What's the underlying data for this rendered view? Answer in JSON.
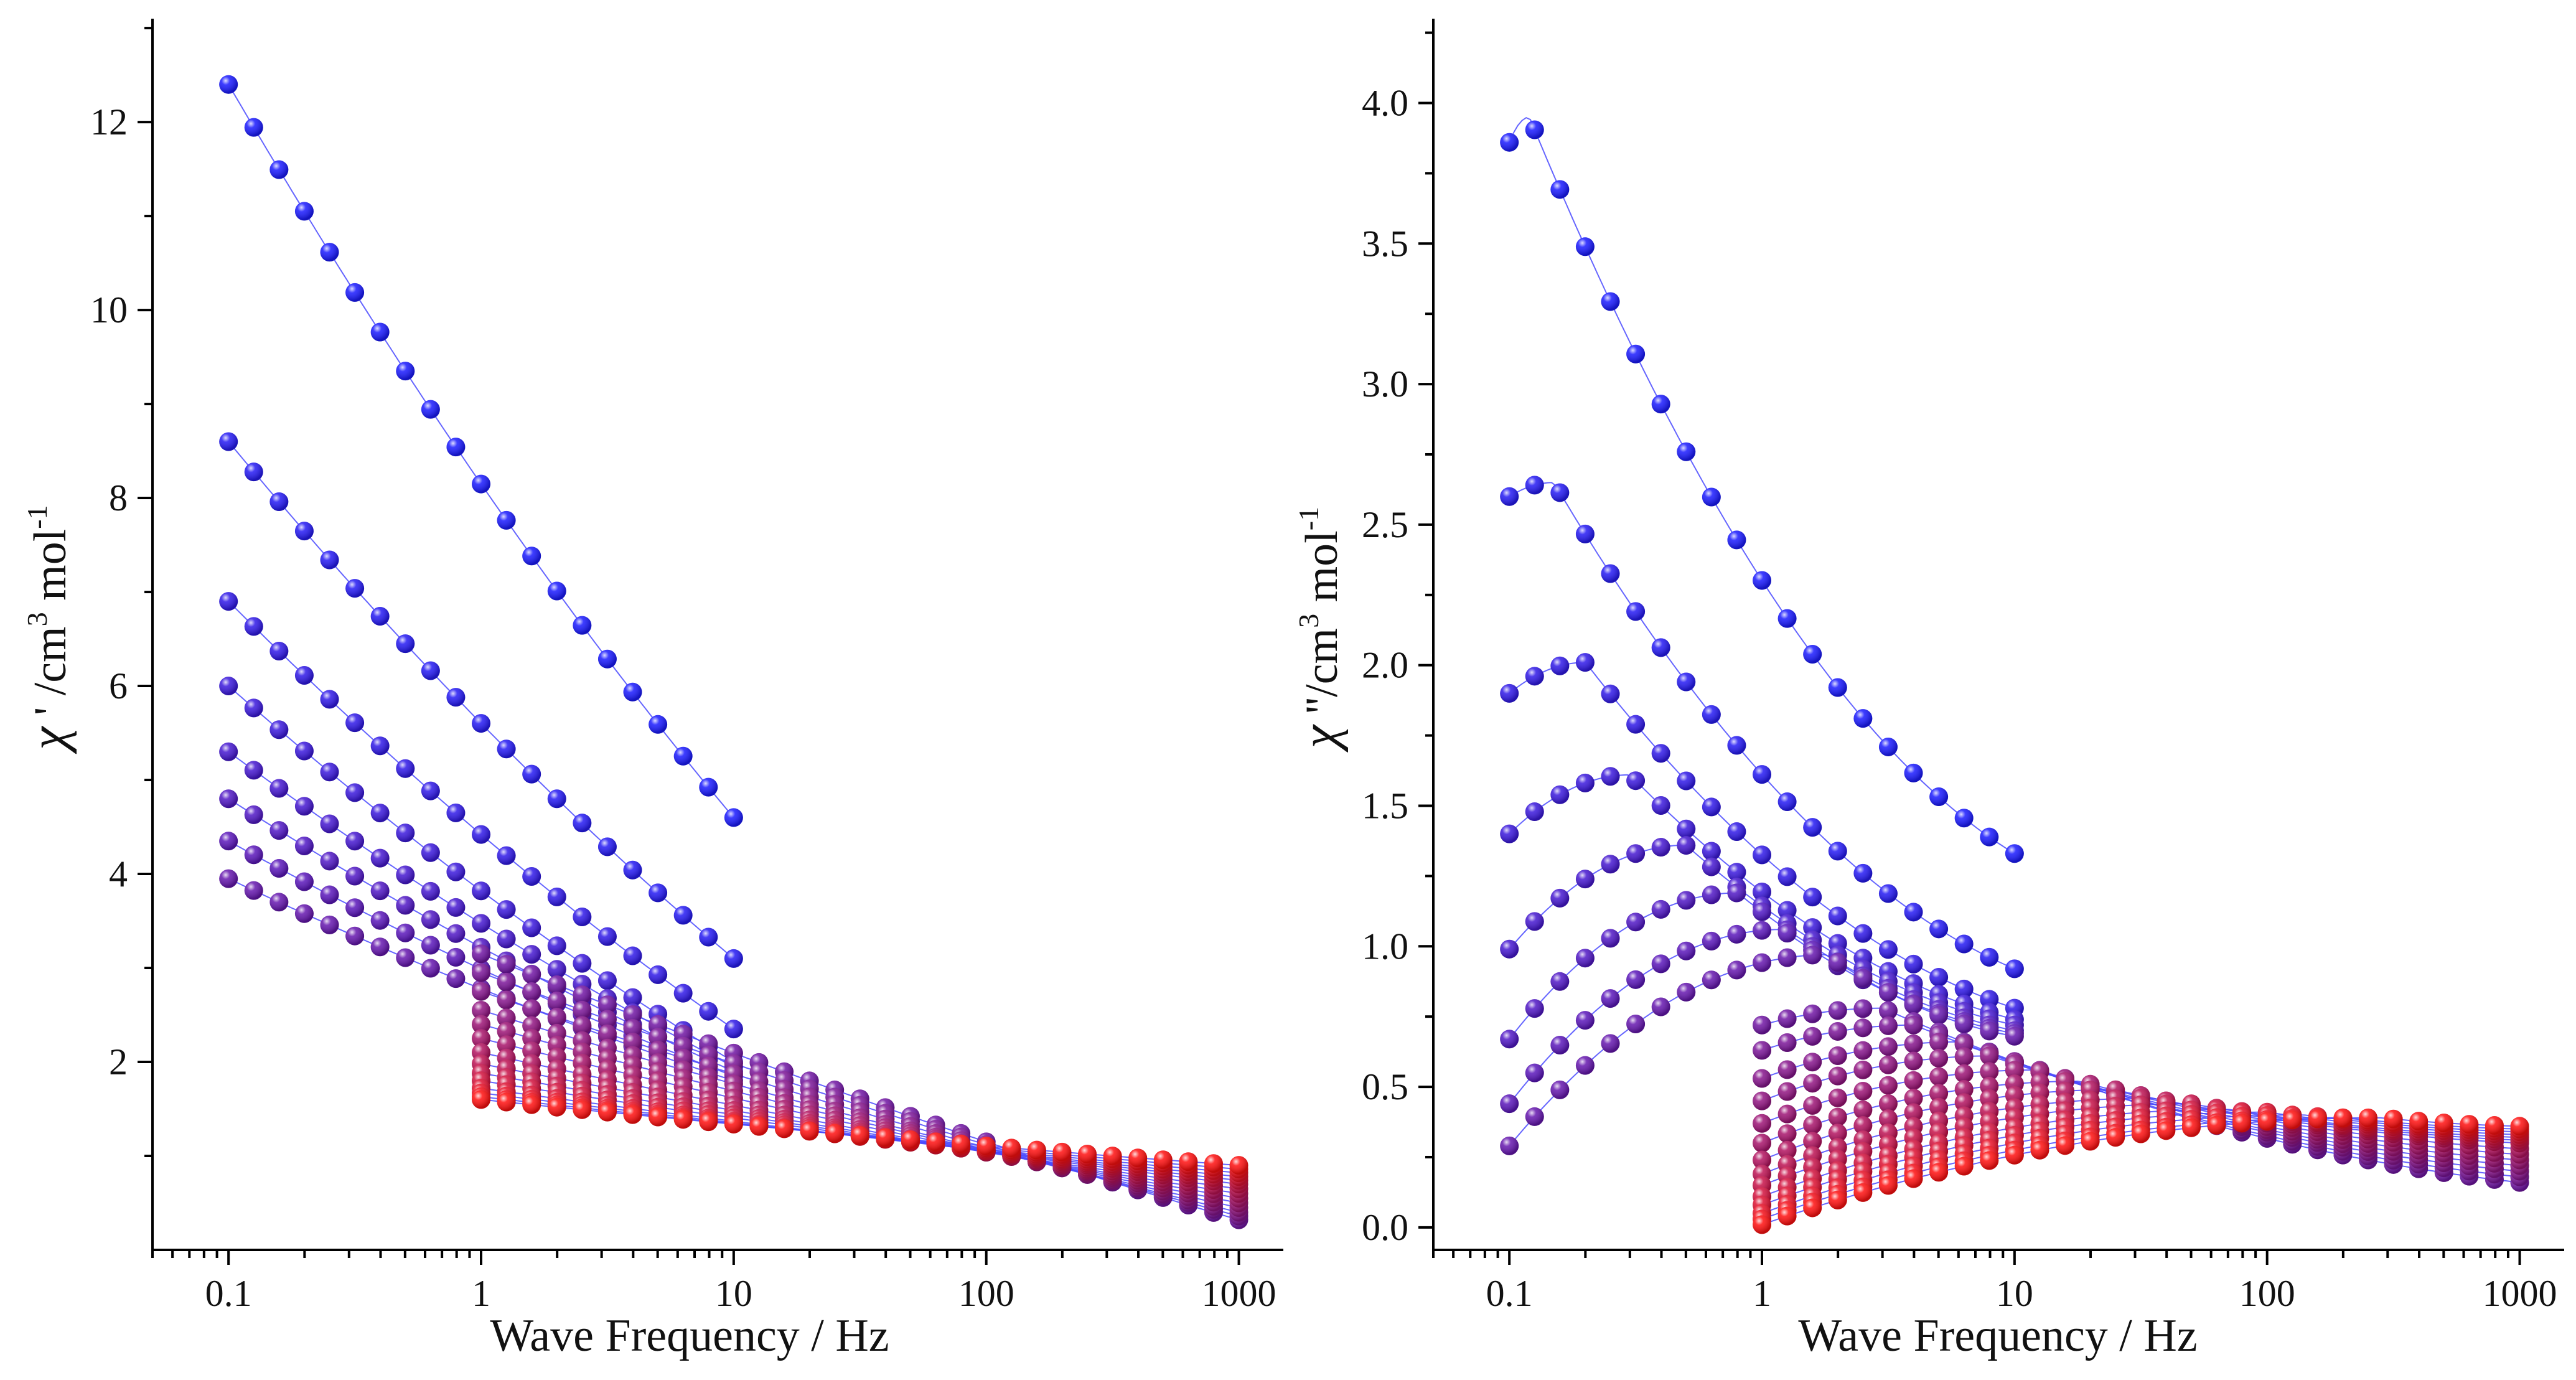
{
  "chart_data": [
    {
      "type": "scatter",
      "title": "",
      "xlabel": "Wave Frequency / Hz",
      "ylabel": "χ ' /cm³ mol⁻¹",
      "ylabel_parts": {
        "symbol": "χ",
        "prime": " '",
        "unit_a": " /cm",
        "sup_a": "3",
        "unit_b": " mol",
        "sup_b": "-1"
      },
      "x_scale": "log",
      "xlim": [
        0.05,
        1500
      ],
      "ylim": [
        0,
        13.1
      ],
      "x_ticks": [
        0.1,
        1,
        10,
        100,
        1000
      ],
      "x_tick_labels": [
        "0.1",
        "1",
        "10",
        "100",
        "1000"
      ],
      "y_ticks": [
        2,
        4,
        6,
        8,
        10,
        12
      ],
      "y_tick_labels": [
        "2",
        "4",
        "6",
        "8",
        "10",
        "12"
      ],
      "grid": false,
      "legend": "none",
      "marker": "sphere",
      "fit_lines": true,
      "color_gradient": {
        "first_series": "#1a1aff",
        "last_series": "#ff1010"
      },
      "fit_color": "#4a4aff",
      "series_groups": [
        {
          "x_start": 0.1,
          "x_end": 10,
          "points_per_decade": 10,
          "series": [
            {
              "y_low": 12.4,
              "y_high": 4.6
            },
            {
              "y_low": 8.6,
              "y_high": 3.1
            },
            {
              "y_low": 6.9,
              "y_high": 2.35
            },
            {
              "y_low": 6.0,
              "y_high": 2.0
            },
            {
              "y_low": 5.3,
              "y_high": 1.95
            },
            {
              "y_low": 4.8,
              "y_high": 1.9
            },
            {
              "y_low": 4.35,
              "y_high": 1.85
            },
            {
              "y_low": 3.95,
              "y_high": 1.8
            }
          ]
        },
        {
          "x_start": 1,
          "x_end": 1000,
          "points_per_decade": 10,
          "series": [
            {
              "y_low": 3.15,
              "y_high": 0.32
            },
            {
              "y_low": 2.95,
              "y_high": 0.36
            },
            {
              "y_low": 2.75,
              "y_high": 0.4
            },
            {
              "y_low": 2.55,
              "y_high": 0.45
            },
            {
              "y_low": 2.4,
              "y_high": 0.5
            },
            {
              "y_low": 2.25,
              "y_high": 0.55
            },
            {
              "y_low": 2.1,
              "y_high": 0.6
            },
            {
              "y_low": 1.98,
              "y_high": 0.65
            },
            {
              "y_low": 1.88,
              "y_high": 0.7
            },
            {
              "y_low": 1.8,
              "y_high": 0.74
            },
            {
              "y_low": 1.72,
              "y_high": 0.78
            },
            {
              "y_low": 1.67,
              "y_high": 0.82
            },
            {
              "y_low": 1.63,
              "y_high": 0.86
            },
            {
              "y_low": 1.6,
              "y_high": 0.9
            }
          ]
        }
      ]
    },
    {
      "type": "scatter",
      "title": "",
      "xlabel": "Wave Frequency / Hz",
      "ylabel": "χ ''/cm³ mol⁻¹",
      "ylabel_parts": {
        "symbol": "χ",
        "prime": " ''",
        "unit_a": "/cm",
        "sup_a": "3",
        "unit_b": " mol",
        "sup_b": "-1"
      },
      "x_scale": "log",
      "xlim": [
        0.05,
        1500
      ],
      "ylim": [
        -0.08,
        4.3
      ],
      "x_ticks": [
        0.1,
        1,
        10,
        100,
        1000
      ],
      "x_tick_labels": [
        "0.1",
        "1",
        "10",
        "100",
        "1000"
      ],
      "y_ticks": [
        0.0,
        0.5,
        1.0,
        1.5,
        2.0,
        2.5,
        3.0,
        3.5,
        4.0
      ],
      "y_tick_labels": [
        "0.0",
        "0.5",
        "1.0",
        "1.5",
        "2.0",
        "2.5",
        "3.0",
        "3.5",
        "4.0"
      ],
      "grid": false,
      "legend": "none",
      "marker": "sphere",
      "fit_lines": true,
      "color_gradient": {
        "first_series": "#1a1aff",
        "last_series": "#ff1010"
      },
      "fit_color": "#4a4aff",
      "series_groups": [
        {
          "x_start": 0.1,
          "x_end": 10,
          "points_per_decade": 10,
          "series": [
            {
              "peak_x": 0.12,
              "peak_y": 3.95,
              "start_y": 3.86,
              "end_y": 1.33
            },
            {
              "peak_x": 0.15,
              "peak_y": 2.65,
              "start_y": 2.6,
              "end_y": 0.92
            },
            {
              "peak_x": 0.2,
              "peak_y": 2.01,
              "start_y": 1.9,
              "end_y": 0.78
            },
            {
              "peak_x": 0.3,
              "peak_y": 1.61,
              "start_y": 1.4,
              "end_y": 0.74
            },
            {
              "peak_x": 0.5,
              "peak_y": 1.36,
              "start_y": 0.99,
              "end_y": 0.72
            },
            {
              "peak_x": 0.8,
              "peak_y": 1.19,
              "start_y": 0.67,
              "end_y": 0.7
            },
            {
              "peak_x": 1.2,
              "peak_y": 1.06,
              "start_y": 0.44,
              "end_y": 0.69
            },
            {
              "peak_x": 1.8,
              "peak_y": 0.97,
              "start_y": 0.29,
              "end_y": 0.68
            }
          ]
        },
        {
          "x_start": 1,
          "x_end": 1000,
          "points_per_decade": 10,
          "series": [
            {
              "peak_x": 3,
              "peak_y": 0.78,
              "start_y": 0.72,
              "end_y": 0.16
            },
            {
              "peak_x": 4,
              "peak_y": 0.72,
              "start_y": 0.63,
              "end_y": 0.18
            },
            {
              "peak_x": 6,
              "peak_y": 0.66,
              "start_y": 0.53,
              "end_y": 0.2
            },
            {
              "peak_x": 8,
              "peak_y": 0.61,
              "start_y": 0.45,
              "end_y": 0.22
            },
            {
              "peak_x": 12,
              "peak_y": 0.56,
              "start_y": 0.37,
              "end_y": 0.24
            },
            {
              "peak_x": 18,
              "peak_y": 0.52,
              "start_y": 0.3,
              "end_y": 0.26
            },
            {
              "peak_x": 25,
              "peak_y": 0.49,
              "start_y": 0.24,
              "end_y": 0.28
            },
            {
              "peak_x": 35,
              "peak_y": 0.46,
              "start_y": 0.19,
              "end_y": 0.3
            },
            {
              "peak_x": 50,
              "peak_y": 0.44,
              "start_y": 0.15,
              "end_y": 0.31
            },
            {
              "peak_x": 70,
              "peak_y": 0.42,
              "start_y": 0.11,
              "end_y": 0.32
            },
            {
              "peak_x": 100,
              "peak_y": 0.41,
              "start_y": 0.08,
              "end_y": 0.33
            },
            {
              "peak_x": 140,
              "peak_y": 0.4,
              "start_y": 0.05,
              "end_y": 0.34
            },
            {
              "peak_x": 200,
              "peak_y": 0.39,
              "start_y": 0.03,
              "end_y": 0.35
            },
            {
              "peak_x": 280,
              "peak_y": 0.39,
              "start_y": 0.01,
              "end_y": 0.36
            }
          ]
        }
      ]
    }
  ]
}
